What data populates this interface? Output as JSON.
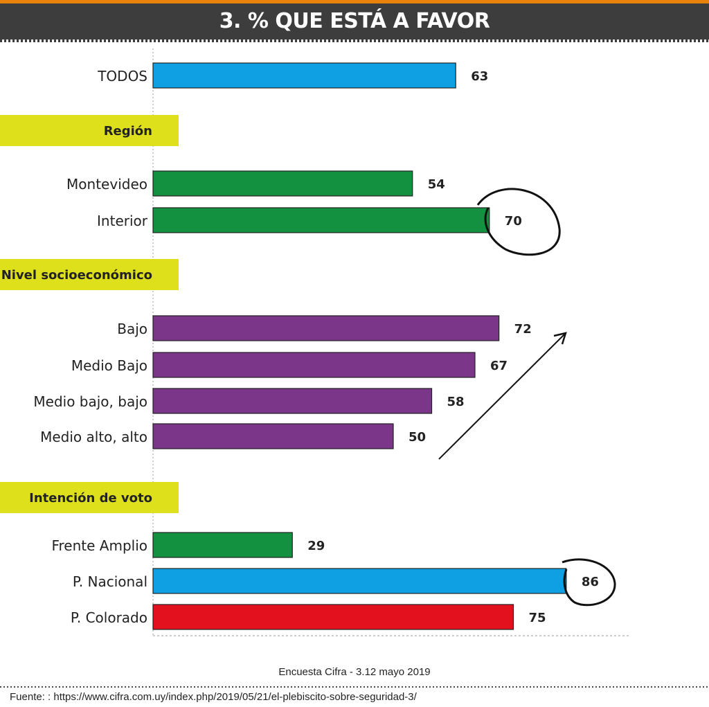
{
  "chart_data": {
    "type": "bar",
    "orientation": "horizontal",
    "title": "3. % QUE ESTÁ A FAVOR",
    "xlim": [
      0,
      100
    ],
    "groups": [
      {
        "header": null,
        "rows": [
          {
            "label": "TODOS",
            "value": 63,
            "color": "#0ea0e2"
          }
        ]
      },
      {
        "header": "Región",
        "rows": [
          {
            "label": "Montevideo",
            "value": 54,
            "color": "#139040"
          },
          {
            "label": "Interior",
            "value": 70,
            "color": "#139040"
          }
        ]
      },
      {
        "header": "Nivel socioeconómico",
        "rows": [
          {
            "label": "Bajo",
            "value": 72,
            "color": "#7b3589"
          },
          {
            "label": "Medio Bajo",
            "value": 67,
            "color": "#7b3589"
          },
          {
            "label": "Medio bajo, bajo",
            "value": 58,
            "color": "#7b3589"
          },
          {
            "label": "Medio alto, alto",
            "value": 50,
            "color": "#7b3589"
          }
        ]
      },
      {
        "header": "Intención de voto",
        "rows": [
          {
            "label": "Frente Amplio",
            "value": 29,
            "color": "#139040"
          },
          {
            "label": "P. Nacional",
            "value": 86,
            "color": "#0ea0e2"
          },
          {
            "label": "P. Colorado",
            "value": 75,
            "color": "#e3101d"
          }
        ]
      }
    ]
  },
  "footer": {
    "survey": "Encuesta Cifra - 3.12 mayo 2019",
    "source": "Fuente: : https://www.cifra.com.uy/index.php/2019/05/21/el-plebiscito-sobre-seguridad-3/"
  },
  "colors": {
    "header_bg": "#3d3d3d",
    "accent": "#e8820c",
    "group_header": "#dde01a"
  }
}
